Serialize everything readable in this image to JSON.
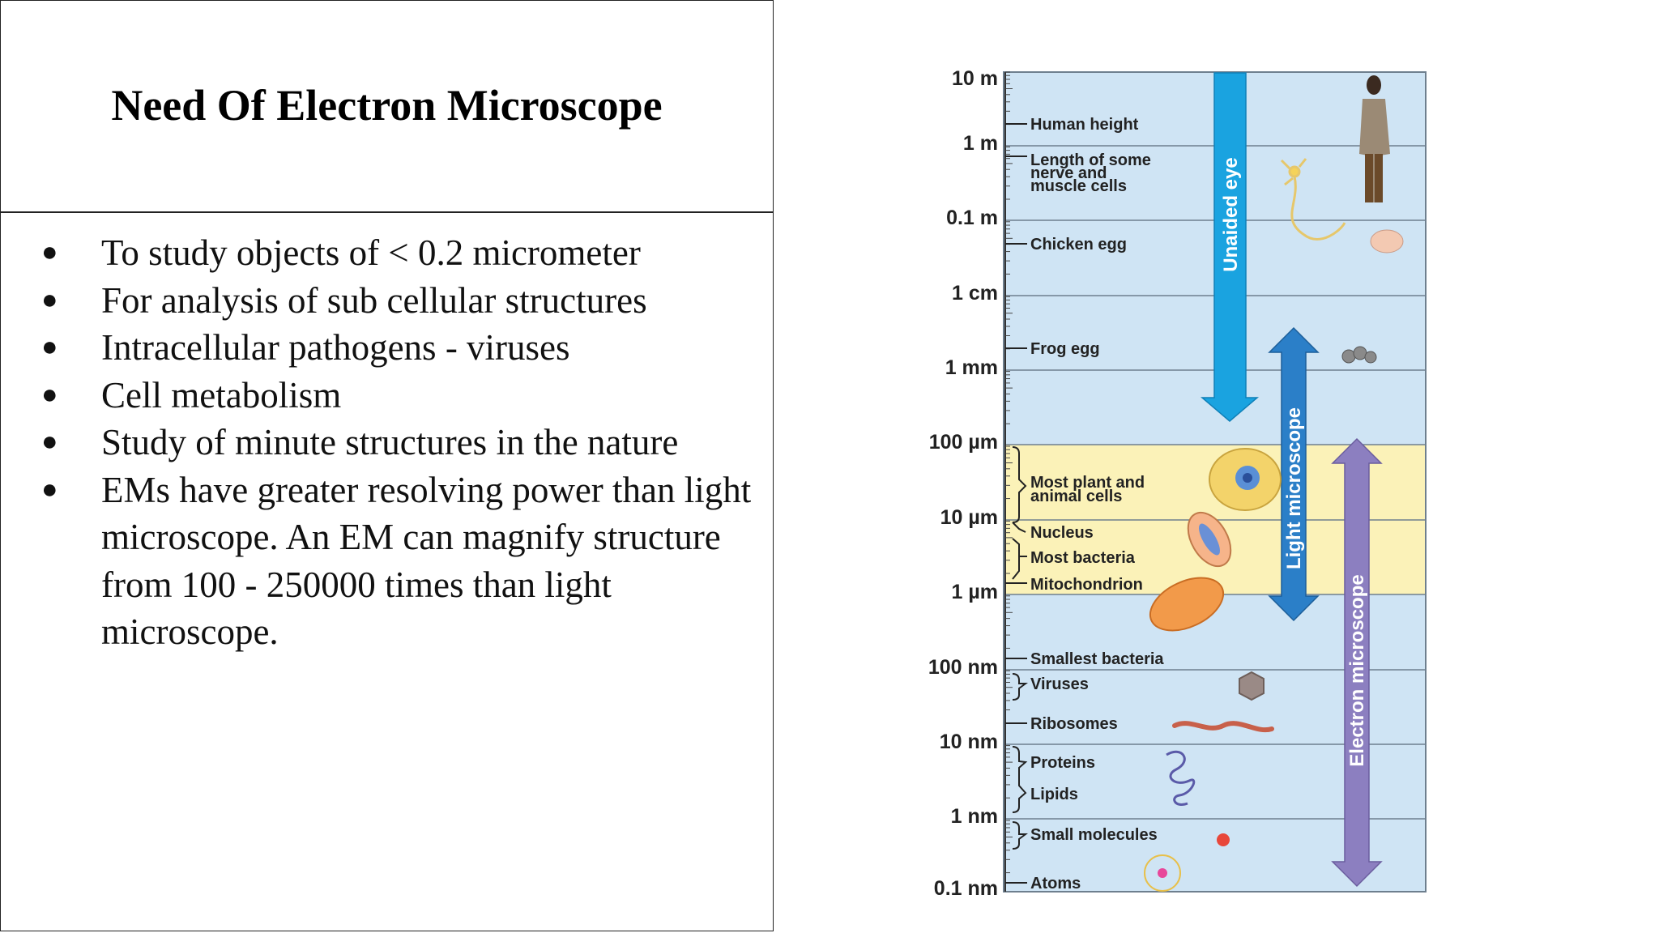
{
  "slide": {
    "title": "Need Of Electron Microscope",
    "bullets": [
      "To study objects of < 0.2 micrometer",
      "For analysis of sub cellular structures",
      "Intracellular pathogens - viruses",
      "Cell metabolism",
      "Study of minute structures in the nature",
      "EMs have greater resolving power than light microscope. An EM can magnify structure from 100 - 250000 times than light microscope."
    ]
  },
  "diagram": {
    "scale_labels": [
      "10 m",
      "1 m",
      "0.1 m",
      "1 cm",
      "1 mm",
      "100 µm",
      "10 µm",
      "1 µm",
      "100 nm",
      "10 nm",
      "1 nm",
      "0.1 nm"
    ],
    "items": {
      "human_height": "Human height",
      "nerve_1": "Length of some",
      "nerve_2": "nerve and",
      "nerve_3": "muscle cells",
      "chicken_egg": "Chicken egg",
      "frog_egg": "Frog egg",
      "plant_1": "Most plant and",
      "plant_2": "animal cells",
      "nucleus": "Nucleus",
      "bacteria": "Most bacteria",
      "mitochondrion": "Mitochondrion",
      "smallest_bacteria": "Smallest bacteria",
      "viruses": "Viruses",
      "ribosomes": "Ribosomes",
      "proteins": "Proteins",
      "lipids": "Lipids",
      "small_molecules": "Small molecules",
      "atoms": "Atoms"
    },
    "ranges": {
      "unaided_eye": "Unaided eye",
      "light_microscope": "Light microscope",
      "electron_microscope": "Electron microscope"
    },
    "colors": {
      "background": "#cfe4f4",
      "highlight": "#fbf2b8",
      "unaided_eye": "#1aa3e0",
      "light_microscope": "#2b7fc8",
      "electron_microscope": "#8c7fc0"
    }
  }
}
